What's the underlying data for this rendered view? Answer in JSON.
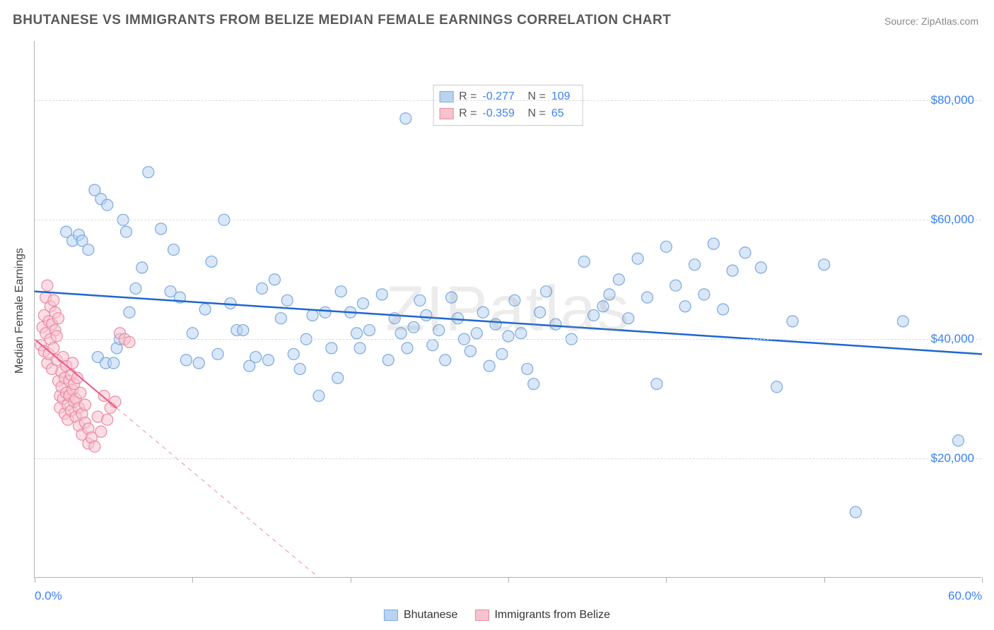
{
  "title": "BHUTANESE VS IMMIGRANTS FROM BELIZE MEDIAN FEMALE EARNINGS CORRELATION CHART",
  "source_label": "Source: ZipAtlas.com",
  "watermark": "ZIPatlas",
  "chart": {
    "type": "scatter",
    "y_axis_title": "Median Female Earnings",
    "xlim": [
      0,
      60
    ],
    "ylim": [
      0,
      90000
    ],
    "x_ticks": [
      0,
      10,
      20,
      30,
      40,
      50,
      60
    ],
    "x_tick_labels": {
      "0": "0.0%",
      "60": "60.0%"
    },
    "y_gridlines": [
      20000,
      40000,
      60000,
      80000
    ],
    "y_tick_labels": [
      "$20,000",
      "$40,000",
      "$60,000",
      "$80,000"
    ],
    "background_color": "#ffffff",
    "grid_color": "#dcdcdc",
    "axis_color": "#b0b0b0",
    "marker_radius": 8,
    "marker_opacity": 0.55,
    "series": [
      {
        "name": "Bhutanese",
        "color_fill": "#b9d4f2",
        "color_stroke": "#7aa9de",
        "R": "-0.277",
        "N": "109",
        "trend": {
          "x1": 0,
          "y1": 48000,
          "x2": 60,
          "y2": 37500,
          "stroke": "#1e66d0",
          "width": 2.5,
          "dashed_after_x": null
        },
        "points": [
          [
            2.0,
            58000
          ],
          [
            2.4,
            56500
          ],
          [
            2.8,
            57500
          ],
          [
            3.0,
            56500
          ],
          [
            3.4,
            55000
          ],
          [
            3.8,
            65000
          ],
          [
            4.2,
            63500
          ],
          [
            4.6,
            62500
          ],
          [
            5.2,
            38500
          ],
          [
            5.6,
            60000
          ],
          [
            5.8,
            58000
          ],
          [
            6.0,
            44500
          ],
          [
            6.4,
            48500
          ],
          [
            6.8,
            52000
          ],
          [
            7.2,
            68000
          ],
          [
            8.0,
            58500
          ],
          [
            4.0,
            37000
          ],
          [
            4.5,
            36000
          ],
          [
            5.0,
            36000
          ],
          [
            5.4,
            40000
          ],
          [
            8.6,
            48000
          ],
          [
            8.8,
            55000
          ],
          [
            9.2,
            47000
          ],
          [
            9.6,
            36500
          ],
          [
            10.0,
            41000
          ],
          [
            10.4,
            36000
          ],
          [
            10.8,
            45000
          ],
          [
            11.2,
            53000
          ],
          [
            11.6,
            37500
          ],
          [
            12.0,
            60000
          ],
          [
            12.4,
            46000
          ],
          [
            12.8,
            41500
          ],
          [
            13.2,
            41500
          ],
          [
            13.6,
            35500
          ],
          [
            14.0,
            37000
          ],
          [
            14.4,
            48500
          ],
          [
            14.8,
            36500
          ],
          [
            15.2,
            50000
          ],
          [
            15.6,
            43500
          ],
          [
            16.0,
            46500
          ],
          [
            16.4,
            37500
          ],
          [
            16.8,
            35000
          ],
          [
            17.2,
            40000
          ],
          [
            17.6,
            44000
          ],
          [
            18.0,
            30500
          ],
          [
            18.4,
            44500
          ],
          [
            18.8,
            38500
          ],
          [
            19.2,
            33500
          ],
          [
            19.4,
            48000
          ],
          [
            20.0,
            44500
          ],
          [
            20.4,
            41000
          ],
          [
            20.6,
            38500
          ],
          [
            20.8,
            46000
          ],
          [
            21.2,
            41500
          ],
          [
            22.0,
            47500
          ],
          [
            22.4,
            36500
          ],
          [
            22.8,
            43500
          ],
          [
            23.2,
            41000
          ],
          [
            23.6,
            38500
          ],
          [
            24.0,
            42000
          ],
          [
            23.5,
            77000
          ],
          [
            24.4,
            46500
          ],
          [
            24.8,
            44000
          ],
          [
            25.2,
            39000
          ],
          [
            25.6,
            41500
          ],
          [
            26.0,
            36500
          ],
          [
            26.4,
            47000
          ],
          [
            26.8,
            43500
          ],
          [
            27.2,
            40000
          ],
          [
            27.6,
            38000
          ],
          [
            28.0,
            41000
          ],
          [
            28.4,
            44500
          ],
          [
            28.8,
            35500
          ],
          [
            29.2,
            42500
          ],
          [
            29.6,
            37500
          ],
          [
            30.0,
            40500
          ],
          [
            30.4,
            46500
          ],
          [
            30.8,
            41000
          ],
          [
            31.2,
            35000
          ],
          [
            31.6,
            32500
          ],
          [
            32.0,
            44500
          ],
          [
            32.4,
            48000
          ],
          [
            33.0,
            42500
          ],
          [
            34.0,
            40000
          ],
          [
            34.8,
            53000
          ],
          [
            35.4,
            44000
          ],
          [
            36.0,
            45500
          ],
          [
            36.4,
            47500
          ],
          [
            37.0,
            50000
          ],
          [
            37.6,
            43500
          ],
          [
            38.2,
            53500
          ],
          [
            38.8,
            47000
          ],
          [
            39.4,
            32500
          ],
          [
            40.0,
            55500
          ],
          [
            40.6,
            49000
          ],
          [
            41.2,
            45500
          ],
          [
            41.8,
            52500
          ],
          [
            42.4,
            47500
          ],
          [
            43.0,
            56000
          ],
          [
            43.6,
            45000
          ],
          [
            44.2,
            51500
          ],
          [
            45.0,
            54500
          ],
          [
            46.0,
            52000
          ],
          [
            47.0,
            32000
          ],
          [
            48.0,
            43000
          ],
          [
            50.0,
            52500
          ],
          [
            52.0,
            11000
          ],
          [
            55.0,
            43000
          ],
          [
            58.5,
            23000
          ]
        ]
      },
      {
        "name": "Immigrants from Belize",
        "color_fill": "#f7c3cf",
        "color_stroke": "#e98aa2",
        "R": "-0.359",
        "N": "65",
        "trend": {
          "x1": 0,
          "y1": 40000,
          "x2": 18,
          "y2": 0,
          "stroke": "#e85a87",
          "width": 2.0,
          "dashed_after_x": 5.2
        },
        "points": [
          [
            0.4,
            39000
          ],
          [
            0.5,
            42000
          ],
          [
            0.6,
            44000
          ],
          [
            0.6,
            38000
          ],
          [
            0.7,
            47000
          ],
          [
            0.7,
            41000
          ],
          [
            0.8,
            36000
          ],
          [
            0.8,
            49000
          ],
          [
            0.9,
            43000
          ],
          [
            0.9,
            37500
          ],
          [
            1.0,
            45500
          ],
          [
            1.0,
            40000
          ],
          [
            1.1,
            35000
          ],
          [
            1.1,
            42500
          ],
          [
            1.2,
            46500
          ],
          [
            1.2,
            38500
          ],
          [
            1.3,
            41500
          ],
          [
            1.3,
            44500
          ],
          [
            1.4,
            36500
          ],
          [
            1.4,
            40500
          ],
          [
            1.5,
            43500
          ],
          [
            1.5,
            33000
          ],
          [
            1.6,
            30500
          ],
          [
            1.6,
            28500
          ],
          [
            1.7,
            32000
          ],
          [
            1.7,
            34500
          ],
          [
            1.8,
            37000
          ],
          [
            1.8,
            30000
          ],
          [
            1.9,
            33500
          ],
          [
            1.9,
            27500
          ],
          [
            2.0,
            31000
          ],
          [
            2.0,
            35500
          ],
          [
            2.1,
            29000
          ],
          [
            2.1,
            26500
          ],
          [
            2.2,
            33000
          ],
          [
            2.2,
            30500
          ],
          [
            2.3,
            28000
          ],
          [
            2.3,
            34000
          ],
          [
            2.4,
            36000
          ],
          [
            2.4,
            31500
          ],
          [
            2.5,
            29500
          ],
          [
            2.5,
            32500
          ],
          [
            2.6,
            27000
          ],
          [
            2.6,
            30000
          ],
          [
            2.7,
            33500
          ],
          [
            2.8,
            28500
          ],
          [
            2.8,
            25500
          ],
          [
            2.9,
            31000
          ],
          [
            3.0,
            27500
          ],
          [
            3.0,
            24000
          ],
          [
            3.2,
            26000
          ],
          [
            3.2,
            29000
          ],
          [
            3.4,
            22500
          ],
          [
            3.4,
            25000
          ],
          [
            3.6,
            23500
          ],
          [
            3.8,
            22000
          ],
          [
            4.0,
            27000
          ],
          [
            4.2,
            24500
          ],
          [
            4.4,
            30500
          ],
          [
            4.6,
            26500
          ],
          [
            4.8,
            28500
          ],
          [
            5.1,
            29500
          ],
          [
            5.4,
            41000
          ],
          [
            5.7,
            40000
          ],
          [
            6.0,
            39500
          ]
        ]
      }
    ],
    "stat_legend": {
      "r_label": "R =",
      "n_label": "N ="
    }
  }
}
